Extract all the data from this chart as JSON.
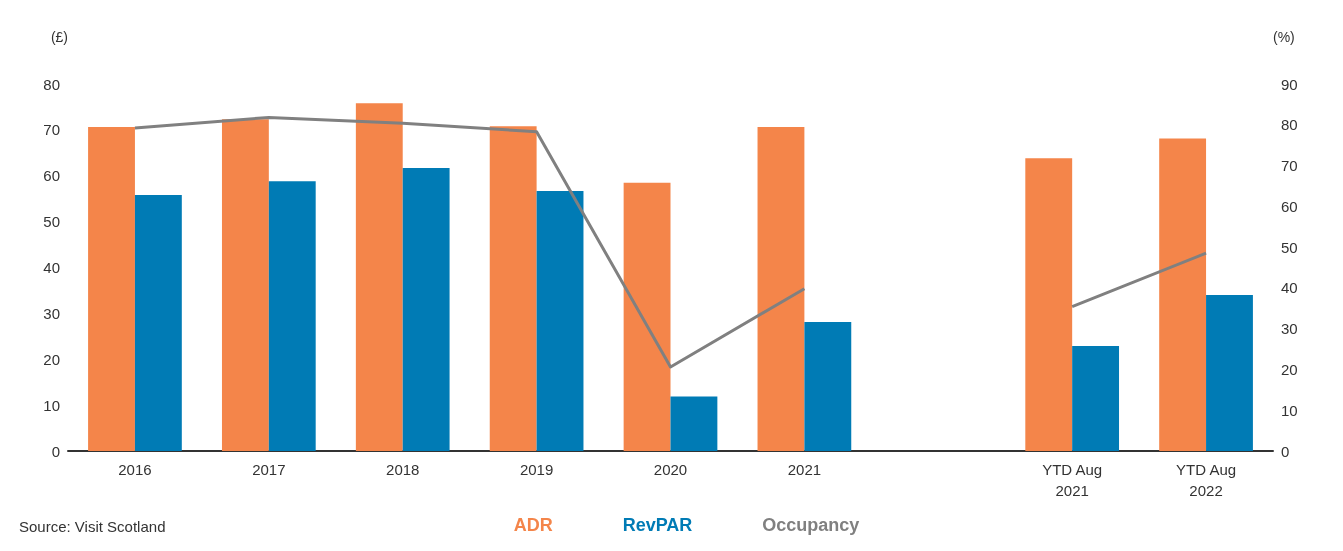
{
  "chart_data": {
    "type": "bar",
    "ylabel": "(£)",
    "y2label": "(%)",
    "categories": [
      "2016",
      "2017",
      "2018",
      "2019",
      "2020",
      "2021",
      null,
      "YTD Aug\n2021",
      "YTD Aug\n2022"
    ],
    "series": [
      {
        "name": "ADR",
        "color": "#f4854a",
        "values": [
          70.6,
          72.3,
          75.8,
          70.8,
          58.5,
          70.6,
          null,
          63.8,
          68.1
        ]
      },
      {
        "name": "RevPAR",
        "color": "#007bb5",
        "values": [
          55.8,
          58.8,
          61.7,
          56.7,
          11.9,
          28.1,
          null,
          22.9,
          34
        ]
      },
      {
        "name": "Occupancy",
        "type": "line",
        "axis": "y2",
        "color": "#808080",
        "marker": "none",
        "values": [
          79.2,
          81.8,
          80.4,
          78.3,
          20.6,
          39.8,
          null,
          35.4,
          48.5
        ]
      }
    ],
    "ylim": [
      0,
      80
    ],
    "yticks": [
      0,
      10,
      20,
      30,
      40,
      50,
      60,
      70,
      80
    ],
    "y2lim": [
      0,
      90
    ],
    "y2ticks": [
      0,
      10,
      20,
      30,
      40,
      50,
      60,
      70,
      80,
      90
    ],
    "grid": false,
    "legend": "bottom",
    "annotations": [
      "Source: Visit Scotland"
    ]
  }
}
